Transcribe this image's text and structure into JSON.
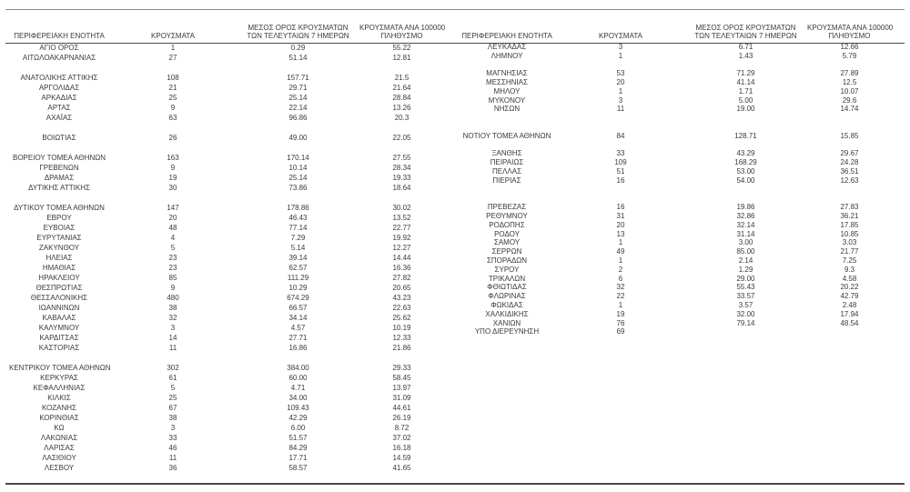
{
  "page": {
    "background": "#ffffff",
    "text_color": "#3a3a3a",
    "rule_color": "#8c8c8c",
    "heavy_rule_color": "#4a4a4a"
  },
  "headers": {
    "region": "ΠΕΡΙΦΕΡΕΙΑΚΗ ΕΝΟΤΗΤΑ",
    "cases": "ΚΡΟΥΣΜΑΤΑ",
    "avg7_line1": "ΜΕΣΟΣ ΟΡΟΣ ΚΡΟΥΣΜΑΤΩΝ",
    "avg7_line2": "ΤΩΝ ΤΕΛΕΥΤΑΙΩΝ 7 ΗΜΕΡΩΝ",
    "per100k_line1": "ΚΡΟΥΣΜΑΤΑ ΑΝΑ 100000",
    "per100k_line2": "ΠΛΗΘΥΣΜΟ"
  },
  "left_rows": [
    [
      "ΑΓΙΟ ΟΡΟΣ",
      "1",
      "0.29",
      "55.22"
    ],
    [
      "ΑΙΤΩΛΟΑΚΑΡΝΑΝΙΑΣ",
      "27",
      "51.14",
      "12.81"
    ],
    null,
    [
      "ΑΝΑΤΟΛΙΚΗΣ ΑΤΤΙΚΗΣ",
      "108",
      "157.71",
      "21.5"
    ],
    [
      "ΑΡΓΟΛΙΔΑΣ",
      "21",
      "29.71",
      "21.64"
    ],
    [
      "ΑΡΚΑΔΙΑΣ",
      "25",
      "25.14",
      "28.84"
    ],
    [
      "ΑΡΤΑΣ",
      "9",
      "22.14",
      "13.26"
    ],
    [
      "ΑΧΑΪΑΣ",
      "63",
      "96.86",
      "20.3"
    ],
    null,
    [
      "ΒΟΙΩΤΙΑΣ",
      "26",
      "49.00",
      "22.05"
    ],
    null,
    [
      "ΒΟΡΕΙΟΥ ΤΟΜΕΑ ΑΘΗΝΩΝ",
      "163",
      "170.14",
      "27.55"
    ],
    [
      "ΓΡΕΒΕΝΩΝ",
      "9",
      "10.14",
      "28.34"
    ],
    [
      "ΔΡΑΜΑΣ",
      "19",
      "25.14",
      "19.33"
    ],
    [
      "ΔΥΤΙΚΗΣ ΑΤΤΙΚΗΣ",
      "30",
      "73.86",
      "18.64"
    ],
    null,
    [
      "ΔΥΤΙΚΟΥ ΤΟΜΕΑ ΑΘΗΝΩΝ",
      "147",
      "178.86",
      "30.02"
    ],
    [
      "ΕΒΡΟΥ",
      "20",
      "46.43",
      "13.52"
    ],
    [
      "ΕΥΒΟΙΑΣ",
      "48",
      "77.14",
      "22.77"
    ],
    [
      "ΕΥΡΥΤΑΝΙΑΣ",
      "4",
      "7.29",
      "19.92"
    ],
    [
      "ΖΑΚΥΝΘΟΥ",
      "5",
      "5.14",
      "12.27"
    ],
    [
      "ΗΛΕΙΑΣ",
      "23",
      "39.14",
      "14.44"
    ],
    [
      "ΗΜΑΘΙΑΣ",
      "23",
      "62.57",
      "16.36"
    ],
    [
      "ΗΡΑΚΛΕΙΟΥ",
      "85",
      "111.29",
      "27.82"
    ],
    [
      "ΘΕΣΠΡΩΤΙΑΣ",
      "9",
      "10.29",
      "20.65"
    ],
    [
      "ΘΕΣΣΑΛΟΝΙΚΗΣ",
      "480",
      "674.29",
      "43.23"
    ],
    [
      "ΙΩΑΝΝΙΝΩΝ",
      "38",
      "66.57",
      "22.63"
    ],
    [
      "ΚΑΒΑΛΑΣ",
      "32",
      "34.14",
      "25.62"
    ],
    [
      "ΚΑΛΥΜΝΟΥ",
      "3",
      "4.57",
      "10.19"
    ],
    [
      "ΚΑΡΔΙΤΣΑΣ",
      "14",
      "27.71",
      "12.33"
    ],
    [
      "ΚΑΣΤΟΡΙΑΣ",
      "11",
      "16.86",
      "21.86"
    ],
    null,
    [
      "ΚΕΝΤΡΙΚΟΥ ΤΟΜΕΑ ΑΘΗΝΩΝ",
      "302",
      "384.00",
      "29.33"
    ],
    [
      "ΚΕΡΚΥΡΑΣ",
      "61",
      "60.00",
      "58.45"
    ],
    [
      "ΚΕΦΑΛΛΗΝΙΑΣ",
      "5",
      "4.71",
      "13.97"
    ],
    [
      "ΚΙΛΚΙΣ",
      "25",
      "34.00",
      "31.09"
    ],
    [
      "ΚΟΖΑΝΗΣ",
      "67",
      "109.43",
      "44.61"
    ],
    [
      "ΚΟΡΙΝΘΙΑΣ",
      "38",
      "42.29",
      "26.19"
    ],
    [
      "ΚΩ",
      "3",
      "6.00",
      "8.72"
    ],
    [
      "ΛΑΚΩΝΙΑΣ",
      "33",
      "51.57",
      "37.02"
    ],
    [
      "ΛΑΡΙΣΑΣ",
      "46",
      "84.29",
      "16.18"
    ],
    [
      "ΛΑΣΙΘΙΟΥ",
      "11",
      "17.71",
      "14.59"
    ],
    [
      "ΛΕΣΒΟΥ",
      "36",
      "58.57",
      "41.65"
    ]
  ],
  "right_rows": [
    [
      "ΛΕΥΚΑΔΑΣ",
      "3",
      "6.71",
      "12.66"
    ],
    [
      "ΛΗΜΝΟΥ",
      "1",
      "1.43",
      "5.79"
    ],
    null,
    [
      "ΜΑΓΝΗΣΙΑΣ",
      "53",
      "71.29",
      "27.89"
    ],
    [
      "ΜΕΣΣΗΝΙΑΣ",
      "20",
      "41.14",
      "12.5"
    ],
    [
      "ΜΗΛΟΥ",
      "1",
      "1.71",
      "10.07"
    ],
    [
      "ΜΥΚΟΝΟΥ",
      "3",
      "5.00",
      "29.6"
    ],
    [
      "ΝΗΣΩΝ",
      "11",
      "19.00",
      "14.74"
    ],
    null,
    null,
    [
      "ΝΟΤΙΟΥ ΤΟΜΕΑ ΑΘΗΝΩΝ",
      "84",
      "128.71",
      "15.85"
    ],
    null,
    [
      "ΞΑΝΘΗΣ",
      "33",
      "43.29",
      "29.67"
    ],
    [
      "ΠΕΙΡΑΙΩΣ",
      "109",
      "168.29",
      "24.28"
    ],
    [
      "ΠΕΛΛΑΣ",
      "51",
      "53.00",
      "36.51"
    ],
    [
      "ΠΙΕΡΙΑΣ",
      "16",
      "54.00",
      "12.63"
    ],
    null,
    null,
    [
      "ΠΡΕΒΕΖΑΣ",
      "16",
      "19.86",
      "27.83"
    ],
    [
      "ΡΕΘΥΜΝΟΥ",
      "31",
      "32.86",
      "36.21"
    ],
    [
      "ΡΟΔΟΠΗΣ",
      "20",
      "32.14",
      "17.85"
    ],
    [
      "ΡΟΔΟΥ",
      "13",
      "31.14",
      "10.85"
    ],
    [
      "ΣΑΜΟΥ",
      "1",
      "3.00",
      "3.03"
    ],
    [
      "ΣΕΡΡΩΝ",
      "49",
      "85.00",
      "21.77"
    ],
    [
      "ΣΠΟΡΑΔΩΝ",
      "1",
      "2.14",
      "7.25"
    ],
    [
      "ΣΥΡΟΥ",
      "2",
      "1.29",
      "9.3"
    ],
    [
      "ΤΡΙΚΑΛΩΝ",
      "6",
      "29.00",
      "4.58"
    ],
    [
      "ΦΘΙΩΤΙΔΑΣ",
      "32",
      "55.43",
      "20.22"
    ],
    [
      "ΦΛΩΡΙΝΑΣ",
      "22",
      "33.57",
      "42.79"
    ],
    [
      "ΦΩΚΙΔΑΣ",
      "1",
      "3.57",
      "2.48"
    ],
    [
      "ΧΑΛΚΙΔΙΚΗΣ",
      "19",
      "32.00",
      "17.94"
    ],
    [
      "ΧΑΝΙΩΝ",
      "76",
      "79.14",
      "48.54"
    ],
    [
      "ΥΠΟ ΔΙΕΡΕΥΝΗΣΗ",
      "69",
      "",
      ""
    ]
  ]
}
